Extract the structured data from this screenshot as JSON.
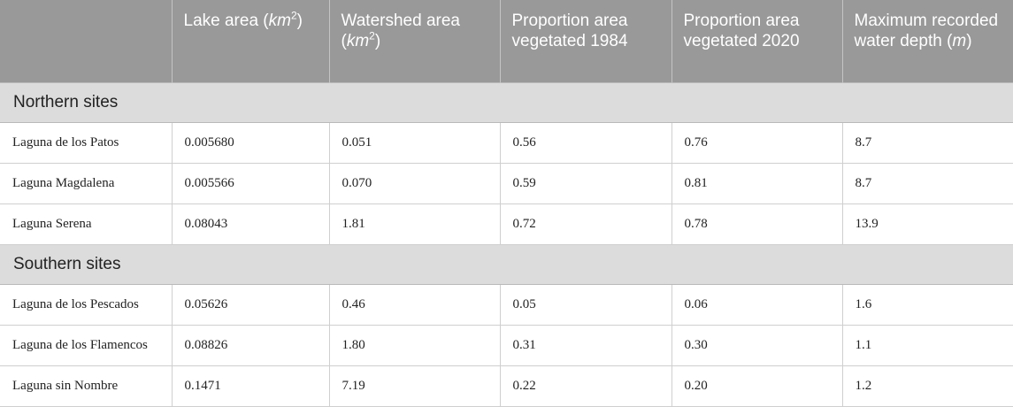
{
  "table": {
    "headers": [
      {
        "text": "",
        "sup": "",
        "after": ""
      },
      {
        "text": "Lake area (",
        "unit": "km",
        "sup": "2",
        "after": ")"
      },
      {
        "text": "Watershed area (",
        "unit": "km",
        "sup": "2",
        "after": ")"
      },
      {
        "text": "Proportion area vegetated 1984",
        "unit": "",
        "sup": "",
        "after": ""
      },
      {
        "text": "Proportion area vegetated 2020",
        "unit": "",
        "sup": "",
        "after": ""
      },
      {
        "text": "Maximum recorded water depth (",
        "unit": "m",
        "sup": "",
        "after": ")"
      }
    ],
    "sections": [
      {
        "title": "Northern sites",
        "rows": [
          [
            "Laguna de los Patos",
            "0.005680",
            "0.051",
            "0.56",
            "0.76",
            "8.7"
          ],
          [
            "Laguna Magdalena",
            "0.005566",
            "0.070",
            "0.59",
            "0.81",
            "8.7"
          ],
          [
            "Laguna Serena",
            "0.08043",
            "1.81",
            "0.72",
            "0.78",
            "13.9"
          ]
        ]
      },
      {
        "title": "Southern sites",
        "rows": [
          [
            "Laguna de los Pescados",
            "0.05626",
            "0.46",
            "0.05",
            "0.06",
            "1.6"
          ],
          [
            "Laguna de los Flamencos",
            "0.08826",
            "1.80",
            "0.31",
            "0.30",
            "1.1"
          ],
          [
            "Laguna sin Nombre",
            "0.1471",
            "7.19",
            "0.22",
            "0.20",
            "1.2"
          ]
        ]
      }
    ]
  }
}
